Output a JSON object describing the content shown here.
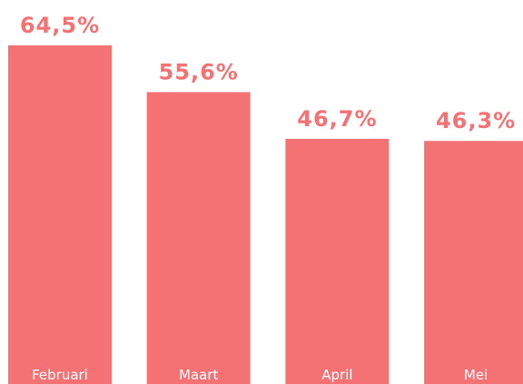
{
  "chart_data": {
    "type": "bar",
    "categories": [
      "Februari",
      "Maart",
      "April",
      "Mei"
    ],
    "values": [
      64.5,
      55.6,
      46.7,
      46.3
    ],
    "value_labels": [
      "64,5%",
      "55,6%",
      "46,7%",
      "46,3%"
    ],
    "color": "#f47174"
  }
}
